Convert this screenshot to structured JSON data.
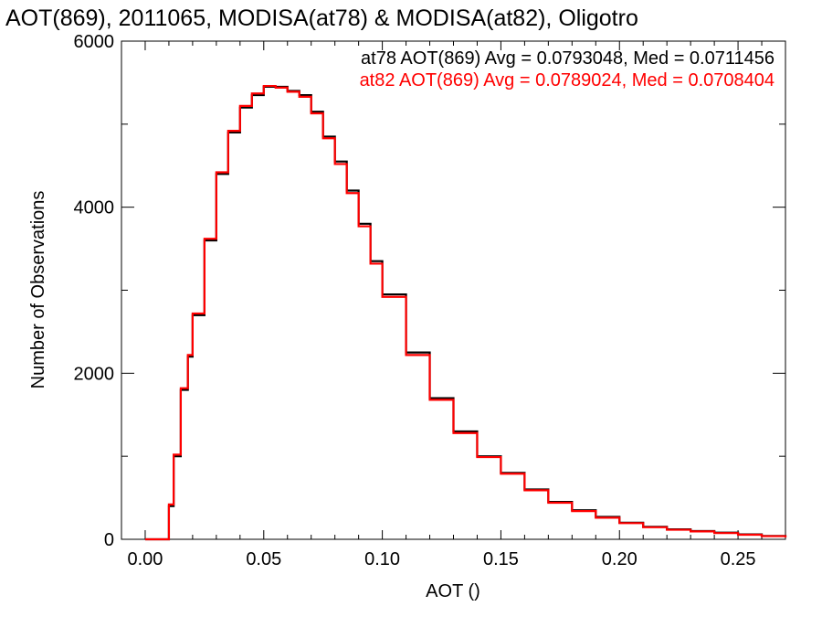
{
  "chart_data": {
    "type": "line",
    "title": "AOT(869), 2011065, MODISA(at78) & MODISA(at82), Oligotro",
    "xlabel": "AOT ()",
    "ylabel": "Number of Observations",
    "xlim": [
      -0.01,
      0.27
    ],
    "ylim": [
      0,
      6000
    ],
    "x_ticks": [
      0.0,
      0.05,
      0.1,
      0.15,
      0.2,
      0.25
    ],
    "x_tick_labels": [
      "0.00",
      "0.05",
      "0.10",
      "0.15",
      "0.20",
      "0.25"
    ],
    "y_ticks": [
      0,
      2000,
      4000,
      6000
    ],
    "y_tick_labels": [
      "0",
      "2000",
      "4000",
      "6000"
    ],
    "grid": false,
    "series": [
      {
        "color": "#000000",
        "annotation": "at78 AOT(869) Avg = 0.0793048, Med = 0.0711456",
        "x": [
          0.0,
          0.005,
          0.008,
          0.01,
          0.012,
          0.015,
          0.018,
          0.02,
          0.025,
          0.03,
          0.035,
          0.04,
          0.045,
          0.05,
          0.055,
          0.06,
          0.065,
          0.07,
          0.075,
          0.08,
          0.085,
          0.09,
          0.095,
          0.1,
          0.11,
          0.12,
          0.13,
          0.14,
          0.15,
          0.16,
          0.17,
          0.18,
          0.19,
          0.2,
          0.21,
          0.22,
          0.23,
          0.24,
          0.25,
          0.26,
          0.27
        ],
        "y": [
          0,
          0,
          0,
          400,
          1000,
          1800,
          2200,
          2700,
          3600,
          4400,
          4900,
          5200,
          5350,
          5450,
          5450,
          5400,
          5350,
          5150,
          4850,
          4550,
          4200,
          3800,
          3350,
          2950,
          2250,
          1700,
          1300,
          1000,
          800,
          600,
          450,
          350,
          270,
          200,
          150,
          120,
          100,
          80,
          60,
          40,
          25
        ]
      },
      {
        "color": "#ff0000",
        "annotation": "at82 AOT(869) Avg = 0.0789024, Med = 0.0708404",
        "x": [
          0.0,
          0.005,
          0.008,
          0.01,
          0.012,
          0.015,
          0.018,
          0.02,
          0.025,
          0.03,
          0.035,
          0.04,
          0.045,
          0.05,
          0.055,
          0.06,
          0.065,
          0.07,
          0.075,
          0.08,
          0.085,
          0.09,
          0.095,
          0.1,
          0.11,
          0.12,
          0.13,
          0.14,
          0.15,
          0.16,
          0.17,
          0.18,
          0.19,
          0.2,
          0.21,
          0.22,
          0.23,
          0.24,
          0.25,
          0.26,
          0.27
        ],
        "y": [
          0,
          0,
          0,
          420,
          1020,
          1820,
          2220,
          2720,
          3620,
          4420,
          4920,
          5220,
          5370,
          5460,
          5440,
          5390,
          5330,
          5130,
          4830,
          4520,
          4170,
          3770,
          3320,
          2920,
          2220,
          1680,
          1280,
          990,
          790,
          590,
          440,
          340,
          260,
          195,
          145,
          115,
          95,
          75,
          55,
          38,
          22
        ]
      }
    ]
  }
}
